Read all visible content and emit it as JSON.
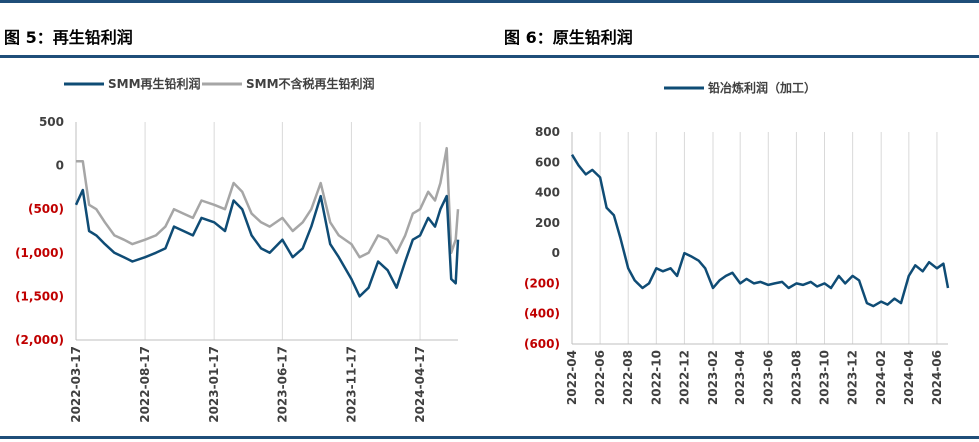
{
  "colors": {
    "accent": "#1f4e79",
    "line_dark": "#0f4c75",
    "line_gray": "#a6a6a6",
    "negative_tick": "#c00000",
    "rule": "#1f4e79"
  },
  "panels": {
    "left_title": "图 5：再生铅利润",
    "right_title": "图 6：原生铅利润"
  },
  "chart_data": [
    {
      "type": "line",
      "title": "图 5：再生铅利润",
      "xlabel": "",
      "ylabel": "",
      "ylim": [
        -2000,
        500
      ],
      "y_ticks": [
        500,
        0,
        -500,
        -1000,
        -1500,
        -2000
      ],
      "y_tick_labels": [
        "500",
        "0",
        "(500)",
        "(1,000)",
        "(1,500)",
        "(2,000)"
      ],
      "x_tick_labels": [
        "2022-03-17",
        "2022-08-17",
        "2023-01-17",
        "2023-06-17",
        "2023-11-17",
        "2024-04-17"
      ],
      "x_ticks": [
        "2022-03-17",
        "2022-08-17",
        "2023-01-17",
        "2023-06-17",
        "2023-11-17",
        "2024-04-17"
      ],
      "x_range": [
        "2022-03-17",
        "2024-07-10"
      ],
      "grid": "vertical",
      "legend_position": "top",
      "series": [
        {
          "name": "SMM再生铅利润",
          "color": "#0f4c75",
          "x": [
            "2022-03-17",
            "2022-04-01",
            "2022-04-15",
            "2022-05-01",
            "2022-05-20",
            "2022-06-10",
            "2022-07-01",
            "2022-07-20",
            "2022-08-17",
            "2022-09-10",
            "2022-10-01",
            "2022-10-20",
            "2022-11-10",
            "2022-12-01",
            "2022-12-20",
            "2023-01-17",
            "2023-02-10",
            "2023-03-01",
            "2023-03-20",
            "2023-04-10",
            "2023-05-01",
            "2023-05-20",
            "2023-06-17",
            "2023-07-10",
            "2023-08-01",
            "2023-08-20",
            "2023-09-10",
            "2023-10-01",
            "2023-10-20",
            "2023-11-17",
            "2023-12-05",
            "2023-12-25",
            "2024-01-15",
            "2024-02-05",
            "2024-02-25",
            "2024-03-15",
            "2024-04-01",
            "2024-04-17",
            "2024-05-05",
            "2024-05-20",
            "2024-06-01",
            "2024-06-15",
            "2024-06-25",
            "2024-07-05",
            "2024-07-10"
          ],
          "values": [
            -450,
            -280,
            -750,
            -800,
            -900,
            -1000,
            -1050,
            -1100,
            -1050,
            -1000,
            -950,
            -700,
            -750,
            -800,
            -600,
            -650,
            -750,
            -400,
            -500,
            -800,
            -950,
            -1000,
            -850,
            -1050,
            -950,
            -700,
            -350,
            -900,
            -1050,
            -1300,
            -1500,
            -1400,
            -1100,
            -1200,
            -1400,
            -1100,
            -850,
            -800,
            -600,
            -700,
            -500,
            -350,
            -1300,
            -1350,
            -850
          ]
        },
        {
          "name": "SMM不含税再生铅利润",
          "color": "#a6a6a6",
          "x": [
            "2022-03-17",
            "2022-04-01",
            "2022-04-15",
            "2022-05-01",
            "2022-05-20",
            "2022-06-10",
            "2022-07-01",
            "2022-07-20",
            "2022-08-17",
            "2022-09-10",
            "2022-10-01",
            "2022-10-20",
            "2022-11-10",
            "2022-12-01",
            "2022-12-20",
            "2023-01-17",
            "2023-02-10",
            "2023-03-01",
            "2023-03-20",
            "2023-04-10",
            "2023-05-01",
            "2023-05-20",
            "2023-06-17",
            "2023-07-10",
            "2023-08-01",
            "2023-08-20",
            "2023-09-10",
            "2023-10-01",
            "2023-10-20",
            "2023-11-17",
            "2023-12-05",
            "2023-12-25",
            "2024-01-15",
            "2024-02-05",
            "2024-02-25",
            "2024-03-15",
            "2024-04-01",
            "2024-04-17",
            "2024-05-05",
            "2024-05-20",
            "2024-06-01",
            "2024-06-15",
            "2024-06-25",
            "2024-07-05",
            "2024-07-10"
          ],
          "values": [
            50,
            50,
            -450,
            -500,
            -650,
            -800,
            -850,
            -900,
            -850,
            -800,
            -700,
            -500,
            -550,
            -600,
            -400,
            -450,
            -500,
            -200,
            -300,
            -550,
            -650,
            -700,
            -600,
            -750,
            -650,
            -500,
            -200,
            -650,
            -800,
            -900,
            -1050,
            -1000,
            -800,
            -850,
            -1000,
            -800,
            -550,
            -500,
            -300,
            -400,
            -200,
            200,
            -1000,
            -850,
            -500
          ]
        }
      ]
    },
    {
      "type": "line",
      "title": "图 6：原生铅利润",
      "xlabel": "",
      "ylabel": "",
      "ylim": [
        -600,
        800
      ],
      "y_ticks": [
        800,
        600,
        400,
        200,
        0,
        -200,
        -400,
        -600
      ],
      "y_tick_labels": [
        "800",
        "600",
        "400",
        "200",
        "0",
        "(200)",
        "(400)",
        "(600)"
      ],
      "x_tick_labels": [
        "2022-04",
        "2022-06",
        "2022-08",
        "2022-10",
        "2022-12",
        "2023-02",
        "2023-04",
        "2023-06",
        "2023-08",
        "2023-10",
        "2023-12",
        "2024-02",
        "2024-04",
        "2024-06"
      ],
      "x_ticks": [
        "2022-04-01",
        "2022-06-01",
        "2022-08-01",
        "2022-10-01",
        "2022-12-01",
        "2023-02-01",
        "2023-04-01",
        "2023-06-01",
        "2023-08-01",
        "2023-10-01",
        "2023-12-01",
        "2024-02-01",
        "2024-04-01",
        "2024-06-01"
      ],
      "x_range": [
        "2022-04-01",
        "2024-06-25"
      ],
      "grid": "vertical",
      "legend_position": "top",
      "series": [
        {
          "name": "铅冶炼利润（加工）",
          "color": "#0f4c75",
          "x": [
            "2022-04-01",
            "2022-04-15",
            "2022-05-01",
            "2022-05-15",
            "2022-06-01",
            "2022-06-15",
            "2022-07-01",
            "2022-07-15",
            "2022-08-01",
            "2022-08-15",
            "2022-09-01",
            "2022-09-15",
            "2022-10-01",
            "2022-10-15",
            "2022-11-01",
            "2022-11-15",
            "2022-12-01",
            "2022-12-15",
            "2023-01-01",
            "2023-01-15",
            "2023-02-01",
            "2023-02-15",
            "2023-03-01",
            "2023-03-15",
            "2023-04-01",
            "2023-04-15",
            "2023-05-01",
            "2023-05-15",
            "2023-06-01",
            "2023-06-15",
            "2023-07-01",
            "2023-07-15",
            "2023-08-01",
            "2023-08-15",
            "2023-09-01",
            "2023-09-15",
            "2023-10-01",
            "2023-10-15",
            "2023-11-01",
            "2023-11-15",
            "2023-12-01",
            "2023-12-15",
            "2024-01-01",
            "2024-01-15",
            "2024-02-01",
            "2024-02-15",
            "2024-03-01",
            "2024-03-15",
            "2024-04-01",
            "2024-04-15",
            "2024-05-01",
            "2024-05-15",
            "2024-06-01",
            "2024-06-15",
            "2024-06-25"
          ],
          "values": [
            650,
            580,
            520,
            550,
            500,
            300,
            250,
            100,
            -100,
            -180,
            -230,
            -200,
            -100,
            -120,
            -100,
            -150,
            0,
            -20,
            -50,
            -100,
            -230,
            -180,
            -150,
            -130,
            -200,
            -170,
            -200,
            -190,
            -210,
            -200,
            -190,
            -230,
            -200,
            -210,
            -190,
            -220,
            -200,
            -230,
            -150,
            -200,
            -150,
            -180,
            -330,
            -350,
            -320,
            -340,
            -300,
            -330,
            -150,
            -80,
            -120,
            -60,
            -100,
            -70,
            -230
          ]
        }
      ]
    }
  ]
}
